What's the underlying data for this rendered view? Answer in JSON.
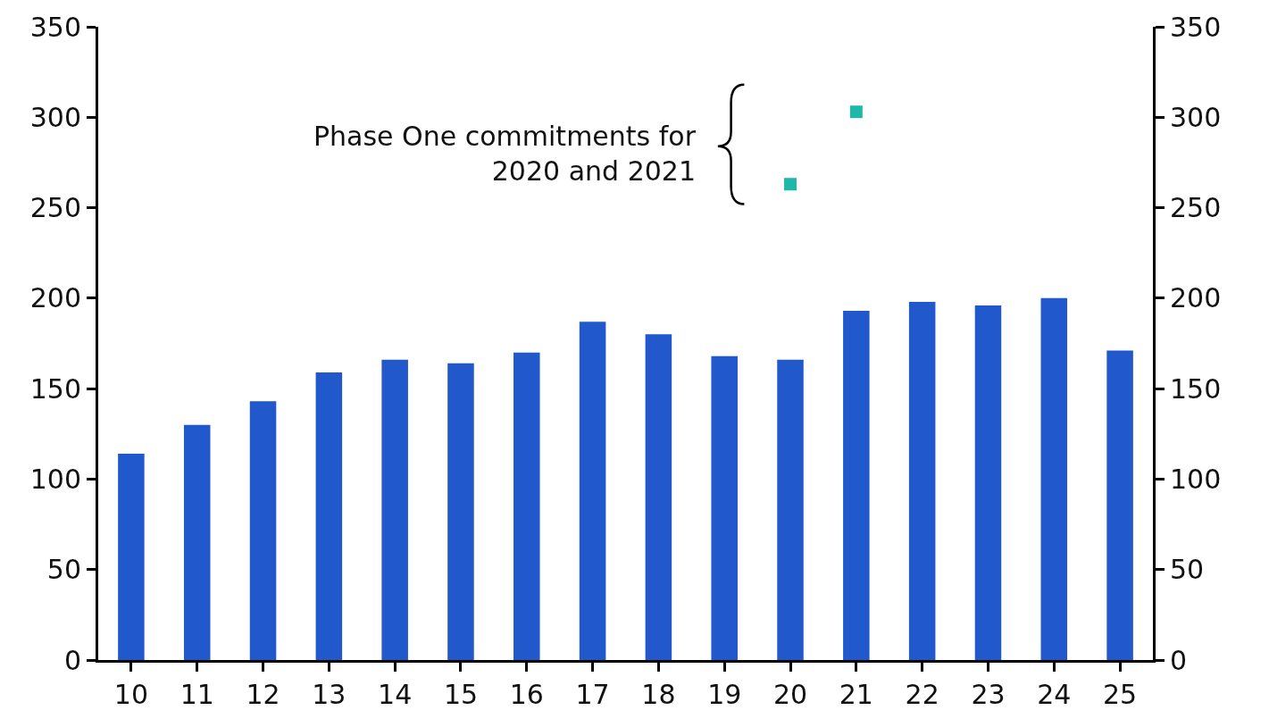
{
  "chart_data": {
    "type": "bar",
    "categories": [
      "10",
      "11",
      "12",
      "13",
      "14",
      "15",
      "16",
      "17",
      "18",
      "19",
      "20",
      "21",
      "22",
      "23",
      "24",
      "25"
    ],
    "series": [
      {
        "color": "#2158cc",
        "values": [
          114,
          130,
          143,
          159,
          166,
          164,
          170,
          187,
          180,
          168,
          166,
          193,
          198,
          196,
          200,
          171
        ]
      },
      {
        "type": "scatter",
        "color": "#1fb8a8",
        "marker": "square",
        "x": [
          "20",
          "21"
        ],
        "values": [
          263,
          303
        ]
      }
    ],
    "ylim": [
      0,
      350
    ],
    "yticks": [
      0,
      50,
      100,
      150,
      200,
      250,
      300,
      350
    ],
    "y2lim": [
      0,
      350
    ],
    "y2ticks": [
      0,
      50,
      100,
      150,
      200,
      250,
      300,
      350
    ],
    "annotations": [
      "Phase One commitments for\n2020 and 2021"
    ]
  }
}
